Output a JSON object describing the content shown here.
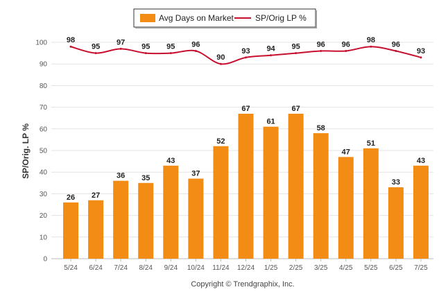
{
  "chart_data": {
    "type": "bar",
    "categories": [
      "5/24",
      "6/24",
      "7/24",
      "8/24",
      "9/24",
      "10/24",
      "11/24",
      "12/24",
      "1/25",
      "2/25",
      "3/25",
      "4/25",
      "5/25",
      "6/25",
      "7/25"
    ],
    "series": [
      {
        "name": "Avg Days on Market",
        "type": "bar",
        "color": "#f28c14",
        "values": [
          26,
          27,
          36,
          35,
          43,
          37,
          52,
          67,
          61,
          67,
          58,
          47,
          51,
          33,
          43
        ]
      },
      {
        "name": "SP/Orig LP %",
        "type": "line",
        "color": "#c8102e",
        "values": [
          98,
          95,
          97,
          95,
          95,
          96,
          90,
          93,
          94,
          95,
          96,
          96,
          98,
          96,
          93
        ]
      }
    ],
    "ylabel": "SP/Orig. LP %",
    "ylim": [
      0,
      100
    ],
    "yticks": [
      0,
      10,
      20,
      30,
      40,
      50,
      60,
      70,
      80,
      90,
      100
    ],
    "grid": true,
    "legend_position": "top"
  },
  "footer": {
    "copyright": "Copyright © Trendgraphix, Inc."
  }
}
